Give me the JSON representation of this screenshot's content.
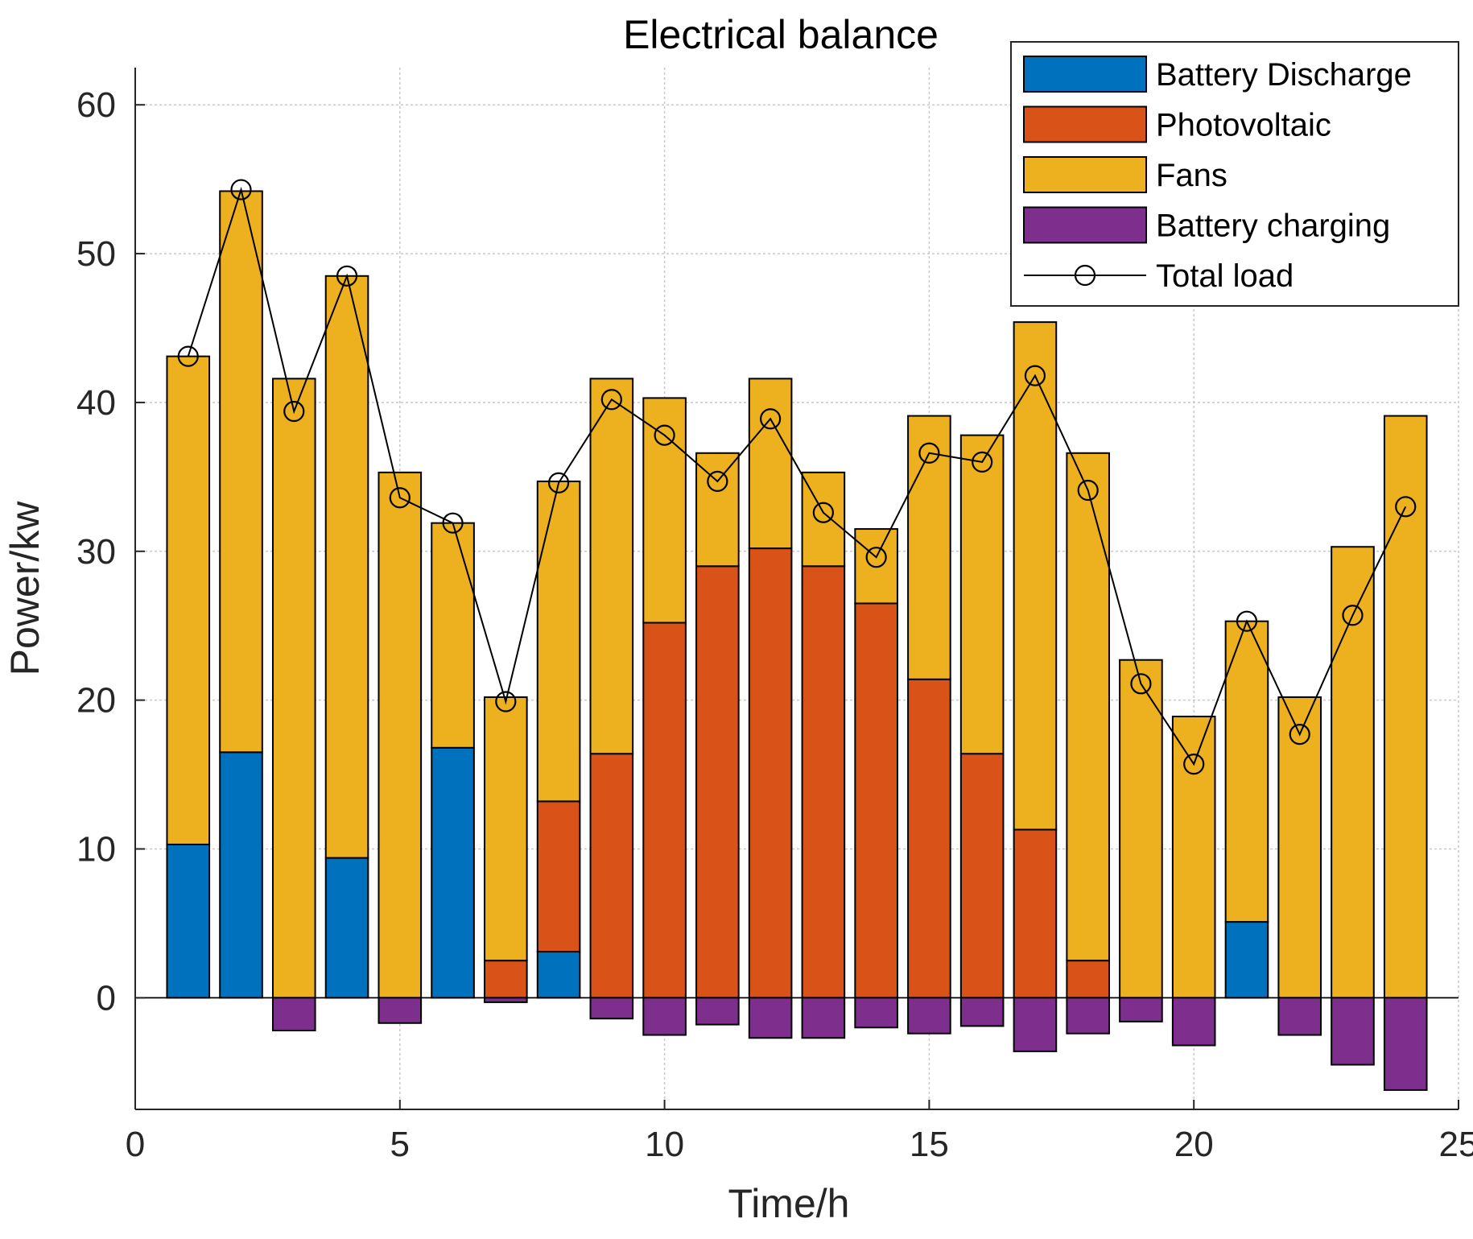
{
  "chart_data": {
    "type": "bar",
    "stacked": true,
    "title": "Electrical balance",
    "xlabel": "Time/h",
    "ylabel": "Power/kw",
    "xlim": [
      0,
      25
    ],
    "ylim": [
      -7.5,
      62.5
    ],
    "xticks": [
      0,
      5,
      10,
      15,
      20,
      25
    ],
    "yticks": [
      0,
      10,
      20,
      30,
      40,
      50,
      60
    ],
    "grid": true,
    "legend_position": "top-right",
    "x": [
      1,
      2,
      3,
      4,
      5,
      6,
      7,
      8,
      9,
      10,
      11,
      12,
      13,
      14,
      15,
      16,
      17,
      18,
      19,
      20,
      21,
      22,
      23,
      24
    ],
    "series": [
      {
        "name": "Battery Discharge",
        "color": "#0072BD",
        "values": [
          10.3,
          16.5,
          0,
          9.4,
          0,
          16.8,
          0,
          3.1,
          0,
          0,
          0,
          0,
          0,
          0,
          0,
          0,
          0,
          0,
          0,
          0,
          5.1,
          0,
          0,
          0
        ]
      },
      {
        "name": "Photovoltaic",
        "color": "#D95319",
        "values": [
          0,
          0,
          0,
          0,
          0,
          0,
          2.5,
          10.1,
          16.4,
          25.2,
          29.0,
          30.2,
          29.0,
          26.5,
          21.4,
          16.4,
          11.3,
          2.5,
          0,
          0,
          0,
          0,
          0,
          0
        ]
      },
      {
        "name": "Fans",
        "color": "#EDB120",
        "values": [
          32.8,
          37.7,
          41.6,
          39.1,
          35.3,
          15.1,
          17.7,
          21.5,
          25.2,
          15.1,
          7.6,
          11.4,
          6.3,
          5.0,
          17.7,
          21.4,
          34.1,
          34.1,
          22.7,
          18.9,
          20.2,
          20.2,
          30.3,
          39.1
        ]
      },
      {
        "name": "Battery charging",
        "color": "#7E2F8E",
        "values": [
          0,
          0,
          -2.2,
          0,
          -1.7,
          0,
          -0.3,
          0,
          -1.4,
          -2.5,
          -1.8,
          -2.7,
          -2.7,
          -2.0,
          -2.4,
          -1.9,
          -3.6,
          -2.4,
          -1.6,
          -3.2,
          0,
          -2.5,
          -4.5,
          -6.2
        ]
      }
    ],
    "line_series": {
      "name": "Total load",
      "color": "#000000",
      "marker": "circle",
      "values": [
        43.1,
        54.3,
        39.4,
        48.5,
        33.6,
        31.9,
        19.9,
        34.6,
        40.2,
        37.8,
        34.7,
        38.9,
        32.6,
        29.6,
        36.6,
        36.0,
        41.8,
        34.1,
        21.1,
        15.7,
        25.3,
        17.7,
        25.7,
        33.0
      ]
    }
  }
}
